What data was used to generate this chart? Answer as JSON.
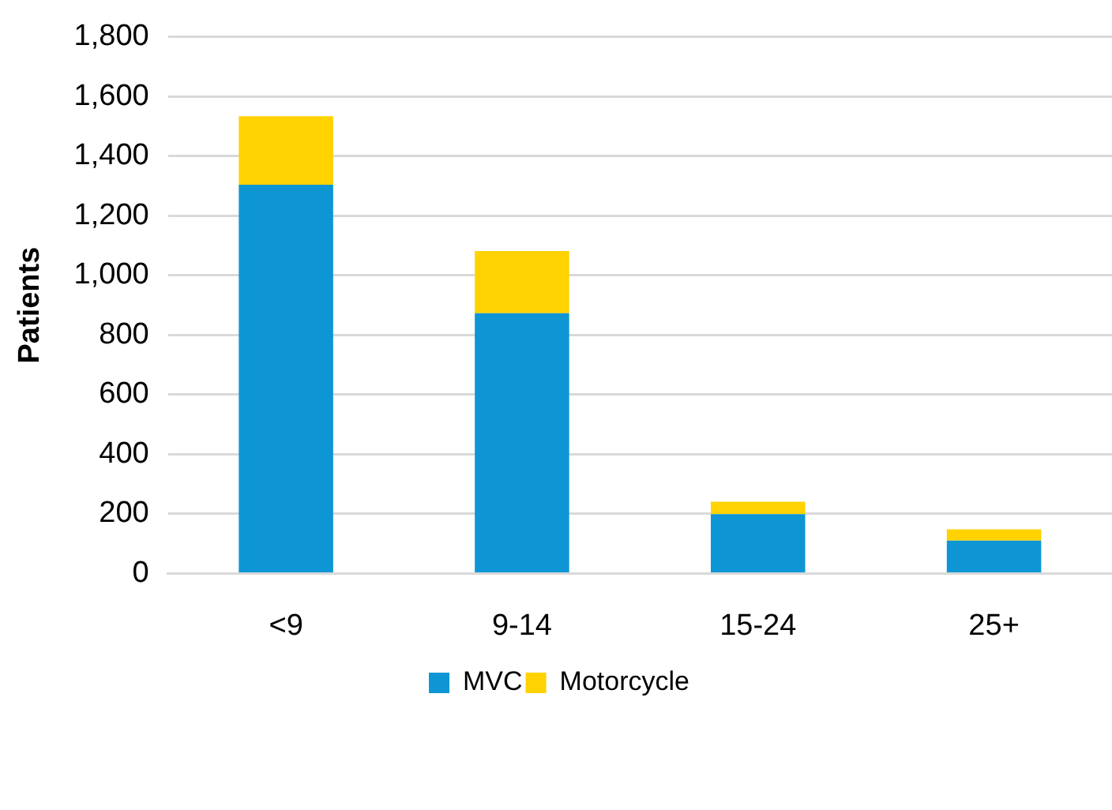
{
  "chart_data": {
    "type": "bar",
    "ylabel": "Patients",
    "categories": [
      "<9",
      "9-14",
      "15-24",
      "25+"
    ],
    "series": [
      {
        "name": "MVC",
        "color": "#0e96d4",
        "values": [
          1304,
          873,
          199,
          110
        ]
      },
      {
        "name": "Motorcycle",
        "color": "#ffd200",
        "values": [
          230,
          209,
          42,
          38
        ]
      }
    ],
    "stacked": true,
    "ylim": [
      0,
      1800
    ],
    "yticks": [
      0,
      200,
      400,
      600,
      800,
      {
        "value": 1000,
        "label": "1,000"
      },
      {
        "value": 1200,
        "label": "1,200"
      },
      {
        "value": 1400,
        "label": "1,400"
      },
      {
        "value": 1600,
        "label": "1,600"
      },
      {
        "value": 1800,
        "label": "1,800"
      }
    ],
    "grid": "y",
    "legend": "bottom"
  }
}
